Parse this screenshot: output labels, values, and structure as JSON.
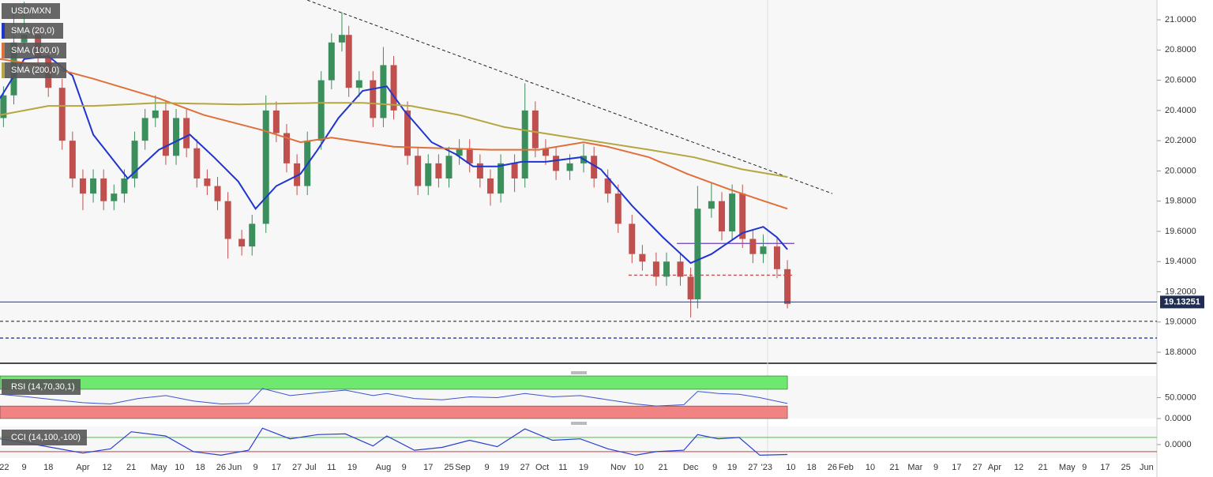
{
  "chart_data": [
    {
      "type": "candlestick",
      "title": "USD/MXN",
      "x": [
        1,
        4,
        7,
        11,
        14,
        18,
        21,
        24,
        27,
        30,
        33,
        36,
        39,
        42,
        45,
        48,
        51,
        54,
        57,
        60,
        63,
        66,
        70,
        73,
        77,
        80,
        83,
        86,
        89,
        93,
        96,
        99,
        101,
        104,
        108,
        111,
        114,
        118,
        121,
        124,
        127,
        130,
        133,
        136,
        139,
        142,
        145,
        149,
        152,
        155,
        158,
        161,
        165,
        169,
        172,
        176,
        179,
        183,
        186,
        190,
        193,
        197,
        200,
        202,
        206,
        209,
        212,
        215,
        218,
        221,
        225,
        228
      ],
      "open": [
        20.35,
        20.5,
        20.85,
        20.9,
        20.75,
        20.55,
        20.2,
        19.95,
        19.85,
        19.95,
        19.8,
        19.85,
        19.95,
        20.2,
        20.35,
        20.4,
        20.1,
        20.35,
        20.15,
        19.95,
        19.9,
        19.8,
        19.55,
        19.5,
        19.65,
        20.4,
        20.25,
        20.05,
        19.9,
        20.2,
        20.6,
        20.85,
        20.9,
        20.55,
        20.6,
        20.35,
        20.7,
        20.4,
        20.1,
        19.9,
        20.05,
        19.95,
        20.1,
        20.15,
        20.05,
        19.95,
        19.85,
        20.05,
        19.95,
        20.4,
        20.15,
        20.1,
        20.0,
        20.05,
        20.1,
        19.95,
        19.85,
        19.65,
        19.45,
        19.4,
        19.3,
        19.4,
        19.3,
        19.15,
        19.75,
        19.8,
        19.6,
        19.85,
        19.55,
        19.45,
        19.5,
        19.35
      ],
      "high": [
        20.56,
        21.1,
        21.12,
        20.96,
        20.81,
        20.61,
        20.26,
        20.01,
        20.01,
        20.01,
        19.91,
        20.01,
        20.26,
        20.41,
        20.5,
        20.46,
        20.41,
        20.41,
        20.21,
        20.01,
        19.96,
        19.86,
        19.61,
        19.71,
        20.5,
        20.46,
        20.31,
        20.11,
        20.26,
        20.66,
        20.91,
        21.05,
        20.96,
        20.66,
        20.66,
        20.82,
        20.76,
        20.46,
        20.16,
        20.11,
        20.11,
        20.16,
        20.21,
        20.21,
        20.11,
        20.01,
        20.11,
        20.11,
        20.58,
        20.46,
        20.21,
        20.16,
        20.11,
        20.18,
        20.16,
        20.01,
        19.91,
        19.71,
        19.51,
        19.46,
        19.46,
        19.46,
        19.36,
        19.9,
        19.92,
        19.86,
        19.91,
        19.91,
        19.61,
        19.58,
        19.56,
        19.41
      ],
      "low": [
        20.29,
        20.44,
        20.79,
        20.69,
        20.49,
        20.14,
        19.89,
        19.74,
        19.79,
        19.74,
        19.74,
        19.79,
        19.89,
        20.14,
        20.29,
        20.04,
        20.04,
        20.09,
        19.89,
        19.84,
        19.74,
        19.42,
        19.44,
        19.44,
        19.59,
        20.19,
        19.99,
        19.84,
        19.84,
        20.14,
        20.54,
        20.79,
        20.49,
        20.49,
        20.29,
        20.29,
        20.34,
        20.04,
        19.84,
        19.84,
        19.89,
        19.89,
        20.04,
        19.99,
        19.89,
        19.77,
        19.79,
        19.86,
        19.89,
        20.09,
        20.04,
        19.94,
        19.94,
        19.99,
        19.89,
        19.79,
        19.59,
        19.39,
        19.34,
        19.24,
        19.24,
        19.24,
        19.03,
        19.09,
        19.69,
        19.54,
        19.54,
        19.49,
        19.39,
        19.39,
        19.29,
        19.09
      ],
      "close": [
        20.5,
        20.85,
        20.9,
        20.75,
        20.55,
        20.2,
        19.95,
        19.85,
        19.95,
        19.8,
        19.85,
        19.95,
        20.2,
        20.35,
        20.4,
        20.1,
        20.35,
        20.15,
        19.95,
        19.9,
        19.8,
        19.55,
        19.5,
        19.65,
        20.4,
        20.25,
        20.05,
        19.9,
        20.2,
        20.6,
        20.85,
        20.9,
        20.55,
        20.6,
        20.35,
        20.7,
        20.4,
        20.1,
        19.9,
        20.05,
        19.95,
        20.1,
        20.15,
        20.05,
        19.95,
        19.85,
        20.05,
        19.95,
        20.4,
        20.15,
        20.1,
        20.0,
        20.05,
        20.1,
        19.95,
        19.85,
        19.65,
        19.45,
        19.4,
        19.3,
        19.4,
        19.3,
        19.15,
        19.75,
        19.8,
        19.6,
        19.85,
        19.55,
        19.45,
        19.5,
        19.35,
        19.12
      ],
      "up_color": "#3b8f5c",
      "down_color": "#c0504d",
      "series": [
        {
          "name": "SMA (20,0)",
          "color": "#1f35d0",
          "x": [
            0,
            7,
            14,
            21,
            27,
            37,
            46,
            55,
            62,
            69,
            74,
            80,
            87,
            92,
            98,
            105,
            112,
            117,
            125,
            132,
            137,
            144,
            151,
            158,
            168,
            174,
            183,
            192,
            200,
            206,
            215,
            221,
            225,
            228
          ],
          "values": [
            20.48,
            20.74,
            20.76,
            20.63,
            20.24,
            19.95,
            20.14,
            20.24,
            20.09,
            19.93,
            19.75,
            19.9,
            19.98,
            20.14,
            20.35,
            20.53,
            20.56,
            20.4,
            20.19,
            20.11,
            20.03,
            20.03,
            20.06,
            20.06,
            20.09,
            20.01,
            19.77,
            19.56,
            19.39,
            19.45,
            19.59,
            19.63,
            19.56,
            19.48
          ]
        },
        {
          "name": "SMA (100,0)",
          "color": "#e0703a",
          "x": [
            0,
            14,
            27,
            46,
            59,
            76,
            87,
            96,
            105,
            114,
            128,
            142,
            156,
            169,
            176,
            188,
            199,
            211,
            220,
            228
          ],
          "values": [
            20.74,
            20.69,
            20.61,
            20.48,
            20.37,
            20.27,
            20.19,
            20.22,
            20.19,
            20.16,
            20.15,
            20.14,
            20.14,
            20.19,
            20.16,
            20.09,
            19.98,
            19.88,
            19.81,
            19.75
          ]
        },
        {
          "name": "SMA (200,0)",
          "color": "#b5a642",
          "x": [
            0,
            14,
            27,
            46,
            69,
            92,
            105,
            119,
            133,
            146,
            160,
            174,
            188,
            201,
            215,
            228
          ],
          "values": [
            20.37,
            20.43,
            20.43,
            20.45,
            20.44,
            20.45,
            20.45,
            20.43,
            20.37,
            20.29,
            20.24,
            20.19,
            20.14,
            20.09,
            20.01,
            19.96
          ]
        }
      ],
      "trendline": {
        "x": [
          89,
          241
        ],
        "values": [
          21.13,
          19.85
        ],
        "color": "#222"
      },
      "levels": [
        {
          "value": 19.52,
          "x": [
            196,
            230
          ],
          "color": "#6a3fc0",
          "dashed": false
        },
        {
          "value": 19.31,
          "x": [
            182,
            230
          ],
          "color": "#c0504d",
          "dashed": true
        },
        {
          "value": 19.005,
          "x": [
            0,
            335
          ],
          "color": "#555",
          "dashed": true
        },
        {
          "value": 18.894,
          "x": [
            0,
            335
          ],
          "color": "#1f3fa0",
          "dashed": true
        }
      ],
      "current_price": 19.13251,
      "xlim": [
        0,
        335
      ],
      "ylim": [
        18.727,
        21.131
      ],
      "yticks": [
        {
          "value": 21,
          "label": "21.0000"
        },
        {
          "value": 20.8,
          "label": "20.8000"
        },
        {
          "value": 20.6,
          "label": "20.6000"
        },
        {
          "value": 20.4,
          "label": "20.4000"
        },
        {
          "value": 20.2,
          "label": "20.2000"
        },
        {
          "value": 20,
          "label": "20.0000"
        },
        {
          "value": 19.8,
          "label": "19.8000"
        },
        {
          "value": 19.6,
          "label": "19.6000"
        },
        {
          "value": 19.4,
          "label": "19.4000"
        },
        {
          "value": 19.2,
          "label": "19.2000"
        },
        {
          "value": 19,
          "label": "19.0000"
        },
        {
          "value": 18.8,
          "label": "18.8000"
        }
      ],
      "xticks": [
        {
          "value": 1,
          "label": "'22"
        },
        {
          "value": 7,
          "label": "9"
        },
        {
          "value": 14,
          "label": "18"
        },
        {
          "value": 24,
          "label": "Apr"
        },
        {
          "value": 31,
          "label": "12"
        },
        {
          "value": 38,
          "label": "21"
        },
        {
          "value": 46,
          "label": "May"
        },
        {
          "value": 52,
          "label": "10"
        },
        {
          "value": 58,
          "label": "18"
        },
        {
          "value": 64,
          "label": "26"
        },
        {
          "value": 68,
          "label": "Jun"
        },
        {
          "value": 74,
          "label": "9"
        },
        {
          "value": 80,
          "label": "17"
        },
        {
          "value": 86,
          "label": "27"
        },
        {
          "value": 90,
          "label": "Jul"
        },
        {
          "value": 96,
          "label": "11"
        },
        {
          "value": 102,
          "label": "19"
        },
        {
          "value": 111,
          "label": "Aug"
        },
        {
          "value": 117,
          "label": "9"
        },
        {
          "value": 124,
          "label": "17"
        },
        {
          "value": 130,
          "label": "25"
        },
        {
          "value": 134,
          "label": "Sep"
        },
        {
          "value": 141,
          "label": "9"
        },
        {
          "value": 146,
          "label": "19"
        },
        {
          "value": 152,
          "label": "27"
        },
        {
          "value": 157,
          "label": "Oct"
        },
        {
          "value": 163,
          "label": "11"
        },
        {
          "value": 169,
          "label": "19"
        },
        {
          "value": 179,
          "label": "Nov"
        },
        {
          "value": 185,
          "label": "10"
        },
        {
          "value": 192,
          "label": "21"
        },
        {
          "value": 200,
          "label": "Dec"
        },
        {
          "value": 207,
          "label": "9"
        },
        {
          "value": 212,
          "label": "19"
        },
        {
          "value": 218,
          "label": "27"
        },
        {
          "value": 222,
          "label": "'23"
        },
        {
          "value": 229,
          "label": "10"
        },
        {
          "value": 235,
          "label": "18"
        },
        {
          "value": 241,
          "label": "26"
        },
        {
          "value": 245,
          "label": "Feb"
        },
        {
          "value": 252,
          "label": "10"
        },
        {
          "value": 259,
          "label": "21"
        },
        {
          "value": 265,
          "label": "Mar"
        },
        {
          "value": 271,
          "label": "9"
        },
        {
          "value": 277,
          "label": "17"
        },
        {
          "value": 283,
          "label": "27"
        },
        {
          "value": 288,
          "label": "Apr"
        },
        {
          "value": 295,
          "label": "12"
        },
        {
          "value": 302,
          "label": "21"
        },
        {
          "value": 309,
          "label": "May"
        },
        {
          "value": 314,
          "label": "9"
        },
        {
          "value": 320,
          "label": "17"
        },
        {
          "value": 326,
          "label": "25"
        },
        {
          "value": 332,
          "label": "Jun"
        }
      ]
    },
    {
      "type": "rsi",
      "title": "RSI (14,70,30,1)",
      "color": "#3a55d0",
      "x": [
        0,
        8,
        16,
        24,
        32,
        40,
        48,
        56,
        64,
        72,
        76,
        84,
        92,
        100,
        108,
        112,
        120,
        128,
        136,
        144,
        152,
        160,
        168,
        176,
        184,
        190,
        198,
        202,
        208,
        214,
        220,
        228
      ],
      "values": [
        58,
        52,
        45,
        38,
        35,
        48,
        55,
        42,
        35,
        36,
        72,
        55,
        62,
        68,
        55,
        60,
        48,
        45,
        52,
        50,
        60,
        52,
        55,
        45,
        35,
        30,
        33,
        65,
        60,
        58,
        50,
        36
      ],
      "overbought": 70,
      "oversold": 30,
      "overbought_color": "#6ee86e",
      "oversold_color": "#f28383",
      "xlim": [
        0,
        335
      ],
      "ylim": [
        0,
        102
      ],
      "yticks": [
        {
          "value": 50,
          "label": "50.0000"
        },
        {
          "value": 0,
          "label": "0.0000"
        }
      ]
    },
    {
      "type": "cci",
      "title": "CCI (14,100,-100)",
      "color": "#2a3fd0",
      "x": [
        0,
        8,
        16,
        24,
        32,
        38,
        48,
        56,
        64,
        72,
        76,
        84,
        92,
        100,
        108,
        112,
        120,
        128,
        136,
        144,
        152,
        160,
        168,
        176,
        184,
        190,
        198,
        202,
        208,
        214,
        220,
        228
      ],
      "values": [
        80,
        20,
        -50,
        -120,
        -60,
        180,
        120,
        -100,
        -150,
        -80,
        230,
        80,
        140,
        150,
        -20,
        120,
        -80,
        -40,
        60,
        -30,
        220,
        60,
        80,
        -60,
        -150,
        -100,
        -80,
        140,
        80,
        100,
        -150,
        -140
      ],
      "upper": 100,
      "lower": -100,
      "upper_color": "#3ccc3c",
      "lower_color": "#d04040",
      "xlim": [
        0,
        335
      ],
      "ylim": [
        -190,
        255
      ],
      "yticks": [
        {
          "value": 0,
          "label": "0.0000"
        }
      ]
    }
  ]
}
